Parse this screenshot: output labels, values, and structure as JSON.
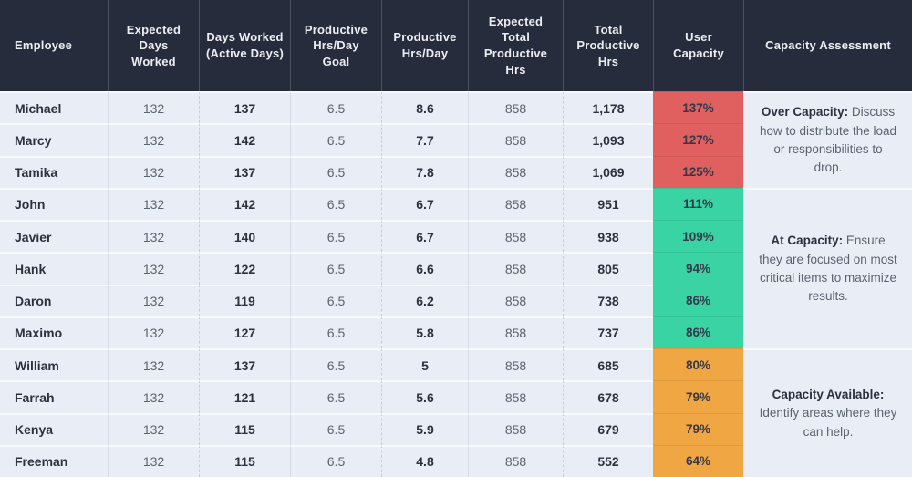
{
  "colors": {
    "header_bg": "#262C3B",
    "row_bg": "#E9EEF6",
    "over": "#E05F5F",
    "at": "#3AD3A4",
    "available": "#F0A643"
  },
  "table": {
    "columns": [
      "Employee",
      "Expected Days Worked",
      "Days Worked (Active Days)",
      "Productive Hrs/Day Goal",
      "Productive Hrs/Day",
      "Expected Total Productive Hrs",
      "Total Productive Hrs",
      "User Capacity",
      "Capacity Assessment"
    ],
    "rows": [
      {
        "employee": "Michael",
        "expected_days": "132",
        "days_worked": "137",
        "hrs_goal": "6.5",
        "hrs_actual": "8.6",
        "expected_total": "858",
        "total_hrs": "1,178",
        "capacity": "137%",
        "group": "over"
      },
      {
        "employee": "Marcy",
        "expected_days": "132",
        "days_worked": "142",
        "hrs_goal": "6.5",
        "hrs_actual": "7.7",
        "expected_total": "858",
        "total_hrs": "1,093",
        "capacity": "127%",
        "group": "over"
      },
      {
        "employee": "Tamika",
        "expected_days": "132",
        "days_worked": "137",
        "hrs_goal": "6.5",
        "hrs_actual": "7.8",
        "expected_total": "858",
        "total_hrs": "1,069",
        "capacity": "125%",
        "group": "over"
      },
      {
        "employee": "John",
        "expected_days": "132",
        "days_worked": "142",
        "hrs_goal": "6.5",
        "hrs_actual": "6.7",
        "expected_total": "858",
        "total_hrs": "951",
        "capacity": "111%",
        "group": "at"
      },
      {
        "employee": "Javier",
        "expected_days": "132",
        "days_worked": "140",
        "hrs_goal": "6.5",
        "hrs_actual": "6.7",
        "expected_total": "858",
        "total_hrs": "938",
        "capacity": "109%",
        "group": "at"
      },
      {
        "employee": "Hank",
        "expected_days": "132",
        "days_worked": "122",
        "hrs_goal": "6.5",
        "hrs_actual": "6.6",
        "expected_total": "858",
        "total_hrs": "805",
        "capacity": "94%",
        "group": "at"
      },
      {
        "employee": "Daron",
        "expected_days": "132",
        "days_worked": "119",
        "hrs_goal": "6.5",
        "hrs_actual": "6.2",
        "expected_total": "858",
        "total_hrs": "738",
        "capacity": "86%",
        "group": "at"
      },
      {
        "employee": "Maximo",
        "expected_days": "132",
        "days_worked": "127",
        "hrs_goal": "6.5",
        "hrs_actual": "5.8",
        "expected_total": "858",
        "total_hrs": "737",
        "capacity": "86%",
        "group": "at"
      },
      {
        "employee": "William",
        "expected_days": "132",
        "days_worked": "137",
        "hrs_goal": "6.5",
        "hrs_actual": "5",
        "expected_total": "858",
        "total_hrs": "685",
        "capacity": "80%",
        "group": "available"
      },
      {
        "employee": "Farrah",
        "expected_days": "132",
        "days_worked": "121",
        "hrs_goal": "6.5",
        "hrs_actual": "5.6",
        "expected_total": "858",
        "total_hrs": "678",
        "capacity": "79%",
        "group": "available"
      },
      {
        "employee": "Kenya",
        "expected_days": "132",
        "days_worked": "115",
        "hrs_goal": "6.5",
        "hrs_actual": "5.9",
        "expected_total": "858",
        "total_hrs": "679",
        "capacity": "79%",
        "group": "available"
      },
      {
        "employee": "Freeman",
        "expected_days": "132",
        "days_worked": "115",
        "hrs_goal": "6.5",
        "hrs_actual": "4.8",
        "expected_total": "858",
        "total_hrs": "552",
        "capacity": "64%",
        "group": "available"
      }
    ],
    "assessments": [
      {
        "id": "over",
        "title": "Over Capacity:",
        "text": "Discuss how to distribute the load or responsibilities to drop."
      },
      {
        "id": "at",
        "title": "At Capacity:",
        "text": "Ensure they are focused on most critical items to maximize results."
      },
      {
        "id": "available",
        "title": "Capacity Available:",
        "text": "Identify areas where they can help."
      }
    ]
  }
}
